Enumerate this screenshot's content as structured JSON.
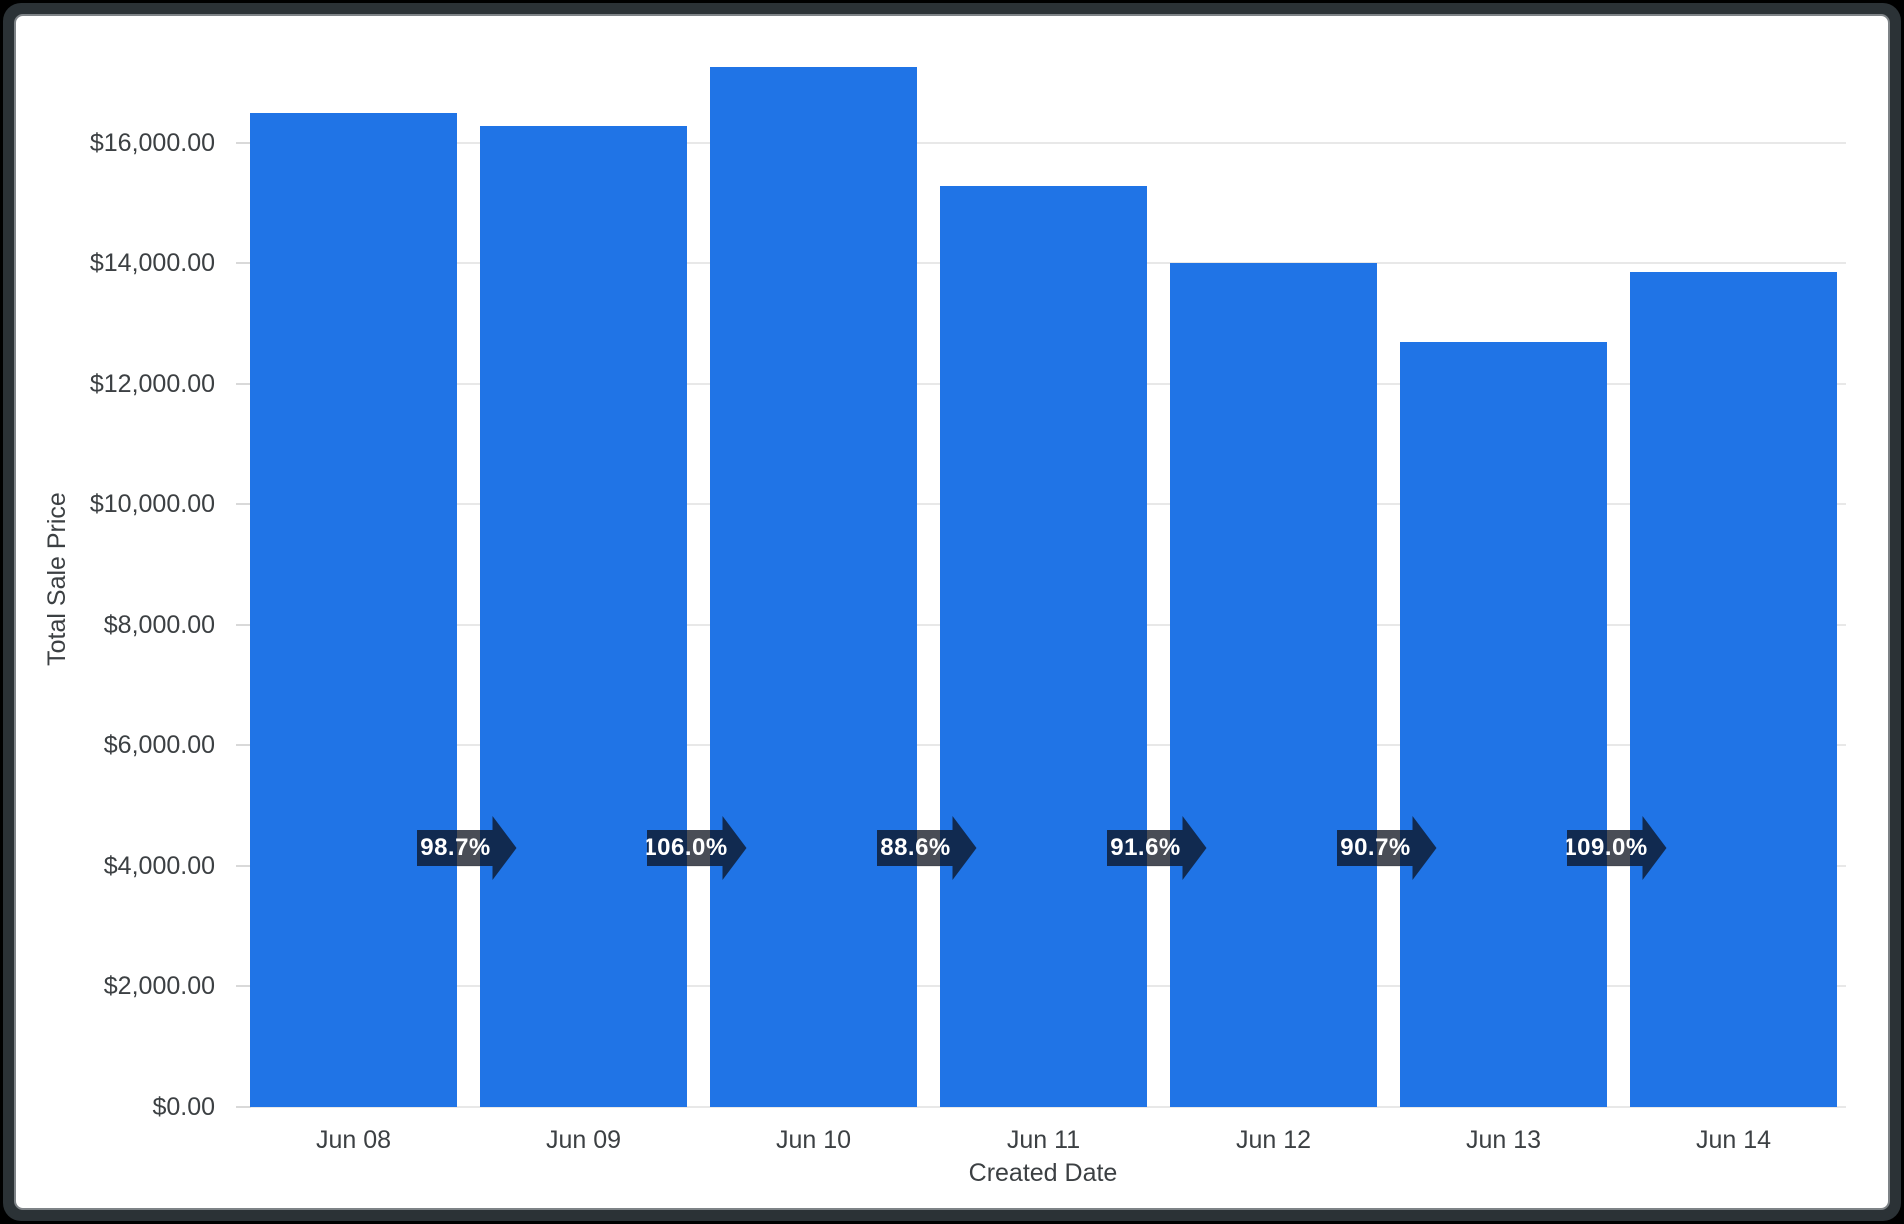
{
  "chart_data": {
    "type": "bar",
    "title": "",
    "xlabel": "Created Date",
    "ylabel": "Total Sale Price",
    "categories": [
      "Jun 08",
      "Jun 09",
      "Jun 10",
      "Jun 11",
      "Jun 12",
      "Jun 13",
      "Jun 14"
    ],
    "values": [
      16500,
      16280,
      17260,
      15290,
      14010,
      12700,
      13850
    ],
    "period_over_period_labels": [
      "98.7%",
      "106.0%",
      "88.6%",
      "91.6%",
      "90.7%",
      "109.0%"
    ],
    "y_ticks": [
      {
        "value": 0,
        "label": "$0.00"
      },
      {
        "value": 2000,
        "label": "$2,000.00"
      },
      {
        "value": 4000,
        "label": "$4,000.00"
      },
      {
        "value": 6000,
        "label": "$6,000.00"
      },
      {
        "value": 8000,
        "label": "$8,000.00"
      },
      {
        "value": 10000,
        "label": "$10,000.00"
      },
      {
        "value": 12000,
        "label": "$12,000.00"
      },
      {
        "value": 14000,
        "label": "$14,000.00"
      },
      {
        "value": 16000,
        "label": "$16,000.00"
      }
    ],
    "ylim": [
      0,
      17700
    ],
    "grid": true,
    "legend": "none",
    "colors": {
      "bar": "#2074E6",
      "badge_bg": "rgba(12, 18, 30, 0.75)",
      "badge_text": "#ffffff",
      "axis_text": "#3c4043",
      "gridline": "#e8e8e8",
      "tick_mark": "#d9d9d9",
      "card_bg": "#ffffff",
      "frame_bg": "#2b3236",
      "frame_border": "#7e8387",
      "page_bg": "#000000"
    }
  }
}
